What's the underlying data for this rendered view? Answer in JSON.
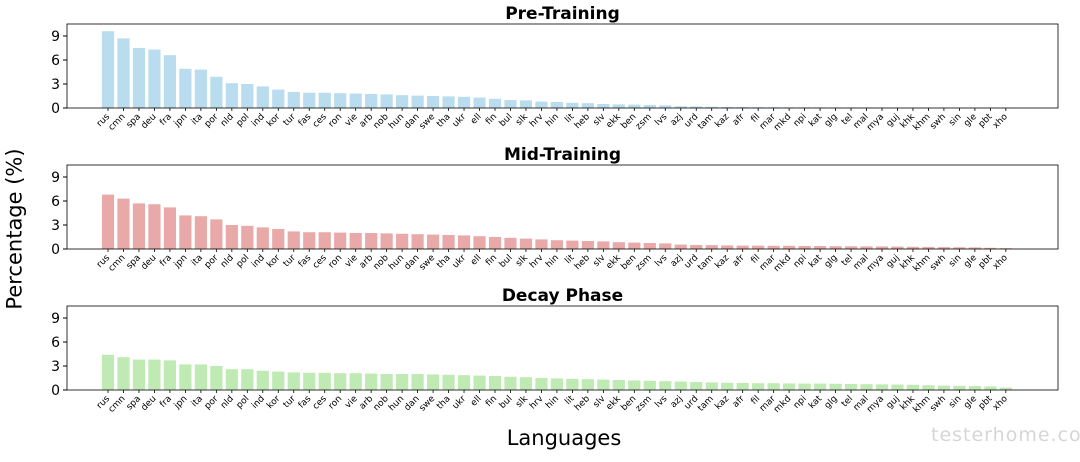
{
  "figure": {
    "ylabel": "Percentage (%)",
    "xlabel": "Languages",
    "watermark": "testerhome.com"
  },
  "chart_data": [
    {
      "type": "bar",
      "title": "Pre-Training",
      "color": "#b9dcee",
      "ylim": [
        0,
        10.5
      ],
      "yticks": [
        0,
        3,
        6,
        9
      ],
      "categories": [
        "rus",
        "cmn",
        "spa",
        "deu",
        "fra",
        "jpn",
        "ita",
        "por",
        "nld",
        "pol",
        "ind",
        "kor",
        "tur",
        "fas",
        "ces",
        "ron",
        "vie",
        "arb",
        "nob",
        "hun",
        "dan",
        "swe",
        "tha",
        "ukr",
        "ell",
        "fin",
        "bul",
        "slk",
        "hrv",
        "hin",
        "lit",
        "heb",
        "slv",
        "ekk",
        "ben",
        "zsm",
        "lvs",
        "azj",
        "urd",
        "tam",
        "kaz",
        "afr",
        "fil",
        "mar",
        "mkd",
        "npi",
        "kat",
        "glg",
        "tel",
        "mal",
        "mya",
        "guj",
        "khk",
        "khm",
        "swh",
        "sin",
        "gle",
        "pbt",
        "xho"
      ],
      "values": [
        9.6,
        8.7,
        7.5,
        7.3,
        6.6,
        4.9,
        4.8,
        3.9,
        3.1,
        3.0,
        2.7,
        2.3,
        2.0,
        1.9,
        1.9,
        1.85,
        1.8,
        1.75,
        1.7,
        1.6,
        1.55,
        1.5,
        1.45,
        1.4,
        1.3,
        1.15,
        1.0,
        0.95,
        0.8,
        0.75,
        0.65,
        0.6,
        0.5,
        0.45,
        0.42,
        0.38,
        0.33,
        0.22,
        0.2,
        0.15,
        0.12,
        0.11,
        0.1,
        0.09,
        0.08,
        0.08,
        0.07,
        0.07,
        0.06,
        0.06,
        0.05,
        0.05,
        0.05,
        0.04,
        0.04,
        0.04,
        0.03,
        0.03,
        0.02
      ]
    },
    {
      "type": "bar",
      "title": "Mid-Training",
      "color": "#eaa9a9",
      "ylim": [
        0,
        10.5
      ],
      "yticks": [
        0,
        3,
        6,
        9
      ],
      "categories": [
        "rus",
        "cmn",
        "spa",
        "deu",
        "fra",
        "jpn",
        "ita",
        "por",
        "nld",
        "pol",
        "ind",
        "kor",
        "tur",
        "fas",
        "ces",
        "ron",
        "vie",
        "arb",
        "nob",
        "hun",
        "dan",
        "swe",
        "tha",
        "ukr",
        "ell",
        "fin",
        "bul",
        "slk",
        "hrv",
        "hin",
        "lit",
        "heb",
        "slv",
        "ekk",
        "ben",
        "zsm",
        "lvs",
        "azj",
        "urd",
        "tam",
        "kaz",
        "afr",
        "fil",
        "mar",
        "mkd",
        "npi",
        "kat",
        "glg",
        "tel",
        "mal",
        "mya",
        "guj",
        "khk",
        "khm",
        "swh",
        "sin",
        "gle",
        "pbt",
        "xho"
      ],
      "values": [
        6.8,
        6.3,
        5.7,
        5.6,
        5.2,
        4.2,
        4.1,
        3.7,
        3.0,
        2.9,
        2.7,
        2.5,
        2.2,
        2.1,
        2.1,
        2.05,
        2.0,
        2.0,
        1.95,
        1.9,
        1.85,
        1.8,
        1.75,
        1.7,
        1.6,
        1.5,
        1.4,
        1.3,
        1.2,
        1.1,
        1.05,
        1.0,
        0.95,
        0.85,
        0.8,
        0.75,
        0.7,
        0.55,
        0.5,
        0.48,
        0.45,
        0.43,
        0.42,
        0.4,
        0.4,
        0.38,
        0.37,
        0.35,
        0.34,
        0.33,
        0.32,
        0.3,
        0.28,
        0.26,
        0.24,
        0.22,
        0.2,
        0.15,
        0.1
      ]
    },
    {
      "type": "bar",
      "title": "Decay Phase",
      "color": "#bfeab3",
      "ylim": [
        0,
        10.5
      ],
      "yticks": [
        0,
        3,
        6,
        9
      ],
      "categories": [
        "rus",
        "cmn",
        "spa",
        "deu",
        "fra",
        "jpn",
        "ita",
        "por",
        "nld",
        "pol",
        "ind",
        "kor",
        "tur",
        "fas",
        "ces",
        "ron",
        "vie",
        "arb",
        "nob",
        "hun",
        "dan",
        "swe",
        "tha",
        "ukr",
        "ell",
        "fin",
        "bul",
        "slk",
        "hrv",
        "hin",
        "lit",
        "heb",
        "slv",
        "ekk",
        "ben",
        "zsm",
        "lvs",
        "azj",
        "urd",
        "tam",
        "kaz",
        "afr",
        "fil",
        "mar",
        "mkd",
        "npi",
        "kat",
        "glg",
        "tel",
        "mal",
        "mya",
        "guj",
        "khk",
        "khm",
        "swh",
        "sin",
        "gle",
        "pbt",
        "xho"
      ],
      "values": [
        4.4,
        4.1,
        3.8,
        3.8,
        3.7,
        3.2,
        3.2,
        3.0,
        2.6,
        2.6,
        2.4,
        2.3,
        2.2,
        2.15,
        2.15,
        2.1,
        2.1,
        2.05,
        2.0,
        2.0,
        2.0,
        1.95,
        1.9,
        1.85,
        1.8,
        1.75,
        1.65,
        1.6,
        1.5,
        1.45,
        1.4,
        1.35,
        1.3,
        1.25,
        1.2,
        1.15,
        1.1,
        1.05,
        1.0,
        0.95,
        0.9,
        0.88,
        0.85,
        0.85,
        0.82,
        0.8,
        0.8,
        0.78,
        0.75,
        0.72,
        0.7,
        0.68,
        0.65,
        0.6,
        0.55,
        0.52,
        0.5,
        0.45,
        0.3
      ]
    }
  ]
}
